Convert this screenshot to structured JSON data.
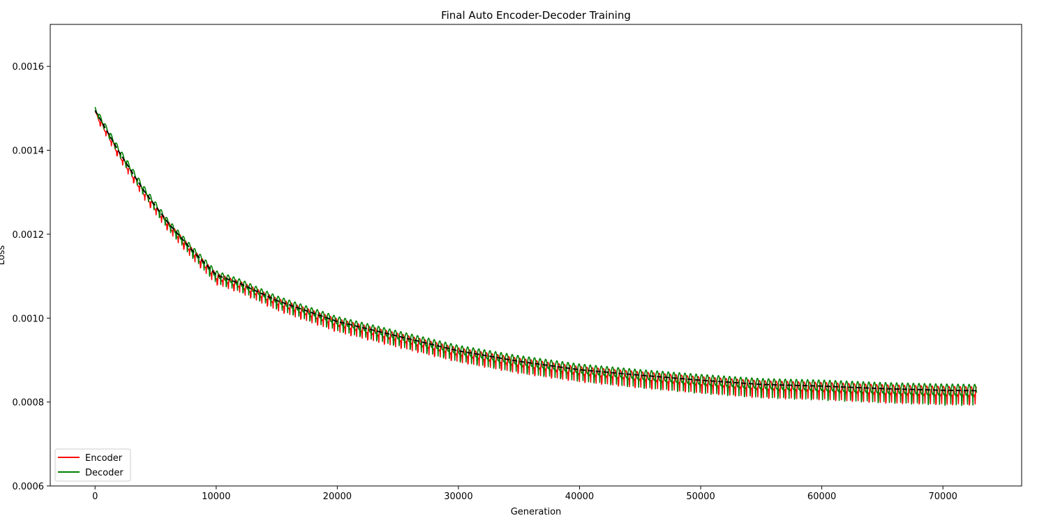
{
  "chart_data": {
    "type": "line",
    "title": "Final Auto Encoder-Decoder Training",
    "xlabel": "Generation",
    "ylabel": "Loss",
    "xlim": [
      -3700,
      76500
    ],
    "ylim": [
      0.0006,
      0.0017
    ],
    "x_ticks": [
      0,
      10000,
      20000,
      30000,
      40000,
      50000,
      60000,
      70000
    ],
    "x_tick_labels": [
      "0",
      "10000",
      "20000",
      "30000",
      "40000",
      "50000",
      "60000",
      "70000"
    ],
    "y_ticks": [
      0.0006,
      0.0008,
      0.001,
      0.0012,
      0.0014,
      0.0016
    ],
    "y_tick_labels": [
      "0.0006",
      "0.0008",
      "0.0010",
      "0.0012",
      "0.0014",
      "0.0016"
    ],
    "grid": false,
    "legend_position": "lower-left",
    "x": [
      0,
      2000,
      4000,
      6000,
      8000,
      10000,
      12000,
      15000,
      20000,
      25000,
      30000,
      35000,
      40000,
      45000,
      50000,
      55000,
      60000,
      65000,
      70000,
      72800
    ],
    "series": [
      {
        "name": "Encoder",
        "color": "#ff0000",
        "style": "solid",
        "values": [
          0.00149,
          0.00139,
          0.0013,
          0.001225,
          0.00116,
          0.0011,
          0.00108,
          0.00104,
          0.00099,
          0.000955,
          0.00092,
          0.000895,
          0.000875,
          0.000862,
          0.00085,
          0.00084,
          0.000836,
          0.00083,
          0.000826,
          0.000825
        ],
        "noise_amplitude": [
          6e-06,
          8e-06,
          9e-06,
          1e-05,
          1.1e-05,
          1.2e-05,
          1.2e-05,
          1.3e-05,
          1.4e-05,
          1.5e-05,
          1.5e-05,
          1.6e-05,
          1.6e-05,
          1.7e-05,
          1.7e-05,
          1.8e-05,
          1.8e-05,
          1.9e-05,
          1.9e-05,
          1.9e-05
        ]
      },
      {
        "name": "Decoder",
        "color": "#008000",
        "style": "solid",
        "values": [
          0.0015,
          0.0014,
          0.00131,
          0.00123,
          0.001165,
          0.001105,
          0.001085,
          0.001045,
          0.000995,
          0.00096,
          0.000925,
          0.0009,
          0.00088,
          0.000866,
          0.000854,
          0.000844,
          0.00084,
          0.000834,
          0.00083,
          0.000829
        ],
        "noise_amplitude": [
          7e-06,
          9e-06,
          1e-05,
          1.1e-05,
          1.2e-05,
          1.3e-05,
          1.3e-05,
          1.4e-05,
          1.5e-05,
          1.6e-05,
          1.7e-05,
          1.8e-05,
          1.8e-05,
          1.9e-05,
          2e-05,
          2e-05,
          2.1e-05,
          2.1e-05,
          2.2e-05,
          2.2e-05
        ]
      },
      {
        "name": "Trend",
        "color": "#000000",
        "style": "dashed",
        "show_in_legend": false,
        "values": [
          0.001495,
          0.001395,
          0.001305,
          0.001228,
          0.001162,
          0.001103,
          0.001082,
          0.001042,
          0.000992,
          0.000957,
          0.000922,
          0.000897,
          0.000877,
          0.000864,
          0.000852,
          0.000842,
          0.000838,
          0.000832,
          0.000828,
          0.000827
        ]
      }
    ]
  }
}
